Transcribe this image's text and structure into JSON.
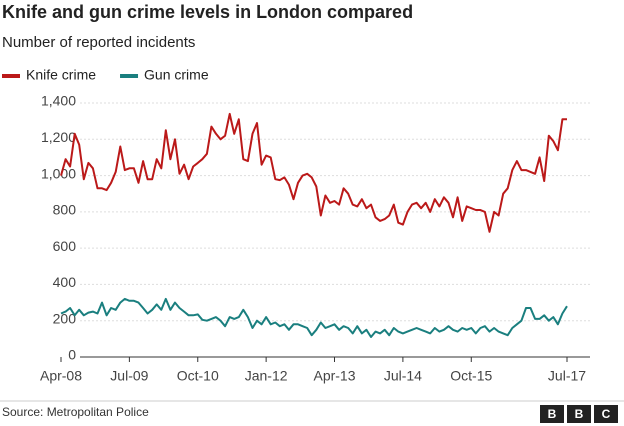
{
  "chart_data": {
    "type": "line",
    "title": "Knife and gun crime levels in London compared",
    "subtitle": "Number of reported incidents",
    "source": "Source: Metropolitan Police",
    "logo": [
      "B",
      "B",
      "C"
    ],
    "categories": [
      "Apr-08",
      null,
      null,
      null,
      null,
      null,
      null,
      null,
      null,
      null,
      null,
      null,
      null,
      null,
      null,
      "Jul-09",
      null,
      null,
      null,
      null,
      null,
      null,
      null,
      null,
      null,
      null,
      null,
      null,
      null,
      null,
      "Oct-10",
      null,
      null,
      null,
      null,
      null,
      null,
      null,
      null,
      null,
      null,
      null,
      null,
      null,
      null,
      "Jan-12",
      null,
      null,
      null,
      null,
      null,
      null,
      null,
      null,
      null,
      null,
      null,
      null,
      null,
      null,
      "Apr-13",
      null,
      null,
      null,
      null,
      null,
      null,
      null,
      null,
      null,
      null,
      null,
      null,
      null,
      null,
      "Jul-14",
      null,
      null,
      null,
      null,
      null,
      null,
      null,
      null,
      null,
      null,
      null,
      null,
      null,
      null,
      "Oct-15",
      null,
      null,
      null,
      null,
      null,
      null,
      null,
      null,
      null,
      null,
      null,
      null,
      null,
      null,
      null,
      null,
      null,
      null,
      null,
      null,
      "Jul-17"
    ],
    "series": [
      {
        "name": "Knife crime",
        "color": "#bb1919",
        "values": [
          1000,
          1090,
          1050,
          1230,
          1170,
          980,
          1070,
          1040,
          930,
          930,
          920,
          960,
          1020,
          1160,
          1030,
          1040,
          1040,
          960,
          1080,
          980,
          980,
          1090,
          1040,
          1250,
          1090,
          1200,
          1010,
          1060,
          980,
          1050,
          1070,
          1090,
          1120,
          1270,
          1230,
          1200,
          1220,
          1340,
          1230,
          1310,
          1090,
          1080,
          1230,
          1290,
          1060,
          1110,
          1100,
          980,
          975,
          990,
          950,
          870,
          960,
          1000,
          1010,
          990,
          940,
          780,
          890,
          850,
          860,
          840,
          930,
          900,
          840,
          830,
          870,
          820,
          840,
          770,
          750,
          760,
          780,
          840,
          740,
          730,
          800,
          840,
          850,
          820,
          850,
          800,
          870,
          830,
          880,
          850,
          770,
          880,
          750,
          830,
          820,
          810,
          810,
          800,
          690,
          800,
          780,
          900,
          930,
          1030,
          1080,
          1030,
          1030,
          1020,
          1010,
          1100,
          970,
          1220,
          1190,
          1140,
          1310,
          1310
        ]
      },
      {
        "name": "Gun crime",
        "color": "#1a7f7f",
        "values": [
          240,
          250,
          270,
          230,
          260,
          230,
          245,
          250,
          240,
          300,
          230,
          270,
          260,
          300,
          320,
          310,
          310,
          300,
          270,
          240,
          260,
          290,
          260,
          320,
          260,
          300,
          270,
          250,
          230,
          230,
          235,
          205,
          200,
          210,
          220,
          200,
          170,
          220,
          210,
          220,
          260,
          220,
          160,
          200,
          180,
          220,
          180,
          190,
          170,
          180,
          150,
          180,
          180,
          170,
          160,
          120,
          150,
          190,
          160,
          170,
          180,
          150,
          170,
          160,
          130,
          170,
          130,
          150,
          110,
          140,
          130,
          150,
          120,
          160,
          140,
          130,
          140,
          150,
          160,
          150,
          140,
          130,
          160,
          140,
          150,
          170,
          150,
          140,
          160,
          150,
          160,
          130,
          160,
          170,
          140,
          160,
          140,
          130,
          120,
          160,
          180,
          200,
          270,
          270,
          210,
          210,
          230,
          200,
          220,
          180,
          240,
          280
        ]
      }
    ],
    "ylim": [
      0,
      1400
    ],
    "yticks": [
      0,
      200,
      400,
      600,
      800,
      {
        "value": 1000,
        "label": "1,000"
      },
      {
        "value": 1200,
        "label": "1,200"
      },
      {
        "value": 1400,
        "label": "1,400"
      }
    ],
    "grid": true
  }
}
